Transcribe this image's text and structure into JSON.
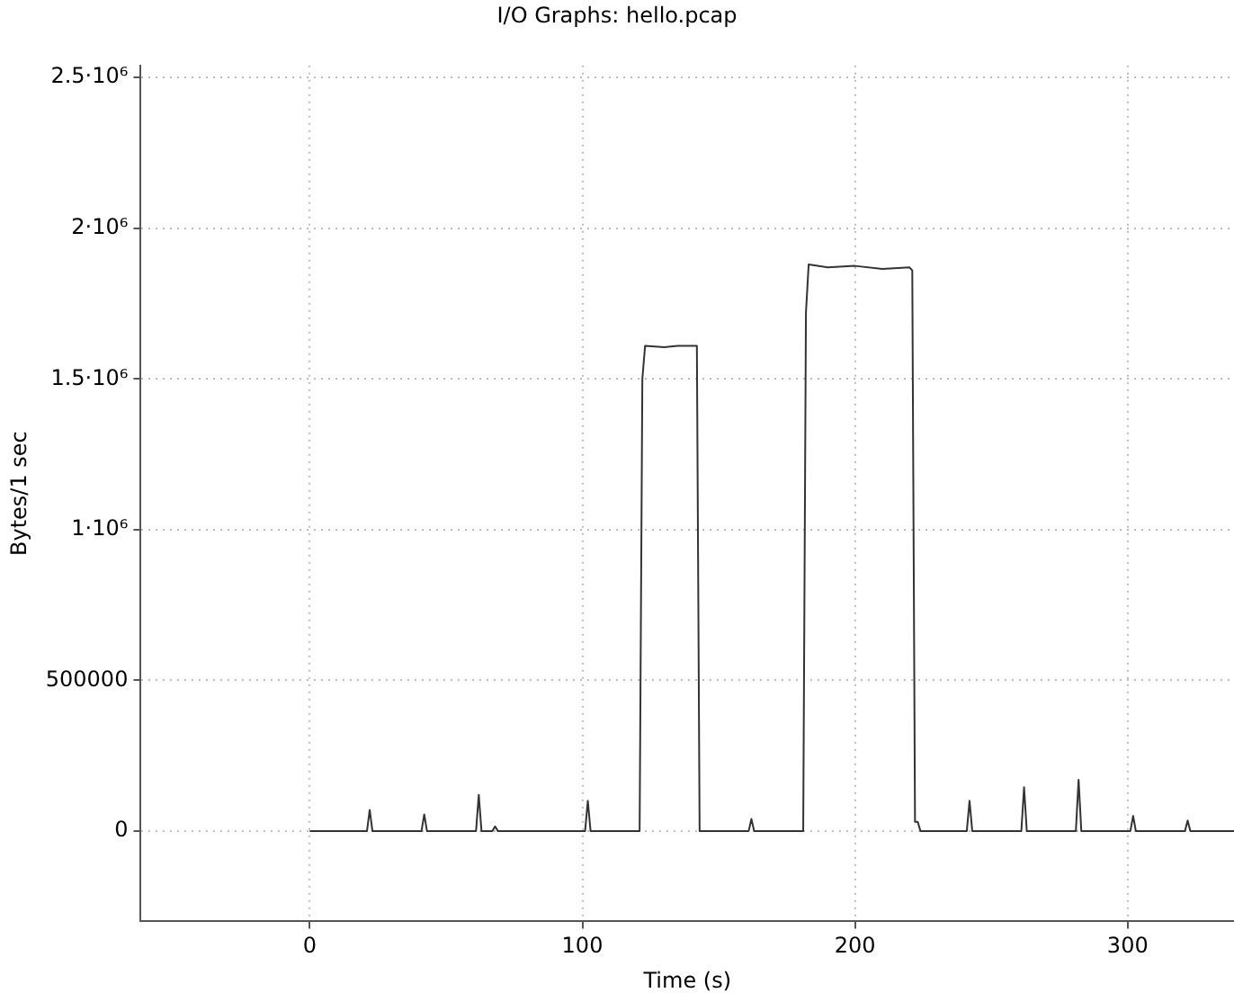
{
  "chart_data": {
    "type": "line",
    "title": "I/O Graphs: hello.pcap",
    "xlabel": "Time (s)",
    "ylabel": "Bytes/1 sec",
    "xlim": [
      -62,
      339
    ],
    "ylim": [
      -300000,
      2540000
    ],
    "xticks": [
      0,
      100,
      200,
      300
    ],
    "yticks": [
      0,
      500000,
      {
        "value": 1000000,
        "label": "1·10⁶"
      },
      {
        "value": 1500000,
        "label": "1.5·10⁶"
      },
      {
        "value": 2000000,
        "label": "2·10⁶"
      },
      {
        "value": 2500000,
        "label": "2.5·10⁶"
      }
    ],
    "grid": true,
    "legend": false,
    "marker": "none",
    "line_style": "solid",
    "series": [
      {
        "color": "#333333",
        "x": [
          0,
          21,
          22,
          23,
          41,
          42,
          43,
          61,
          62,
          63,
          67,
          68,
          69,
          101,
          102,
          103,
          121,
          122,
          123,
          130,
          135,
          142,
          143,
          161,
          162,
          163,
          181,
          182,
          183,
          190,
          200,
          210,
          220,
          221,
          222,
          223,
          224,
          241,
          242,
          243,
          261,
          262,
          263,
          281,
          282,
          283,
          301,
          302,
          303,
          321,
          322,
          323,
          339
        ],
        "values": [
          0,
          0,
          70000,
          0,
          0,
          55000,
          0,
          0,
          120000,
          0,
          0,
          15000,
          0,
          0,
          100000,
          0,
          0,
          1500000,
          1610000,
          1605000,
          1610000,
          1610000,
          0,
          0,
          40000,
          0,
          0,
          1720000,
          1880000,
          1870000,
          1875000,
          1865000,
          1870000,
          1860000,
          30000,
          30000,
          0,
          0,
          100000,
          0,
          0,
          145000,
          0,
          0,
          170000,
          0,
          0,
          50000,
          0,
          0,
          35000,
          0,
          0
        ]
      }
    ]
  }
}
